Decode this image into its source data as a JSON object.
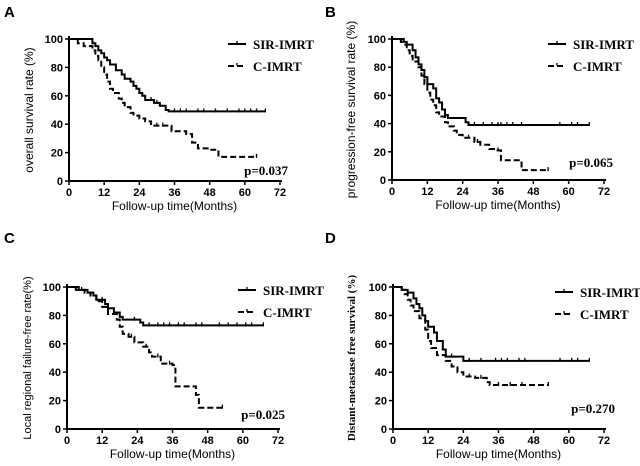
{
  "chart_data": [
    {
      "panel": "A",
      "type": "line",
      "step": true,
      "xlabel": "Follow-up time(Months)",
      "ylabel": "overall survival rate (%)",
      "xlim": [
        0,
        72
      ],
      "ylim": [
        0,
        100
      ],
      "xticks": [
        0,
        12,
        24,
        36,
        48,
        60,
        72
      ],
      "yticks": [
        0,
        20,
        40,
        60,
        80,
        100
      ],
      "p_value": "p=0.037",
      "grid": false,
      "legend_placement": "top-right",
      "series": [
        {
          "name": "SIR-IMRT",
          "style": "solid",
          "points": [
            [
              0,
              100
            ],
            [
              7,
              100
            ],
            [
              8,
              97
            ],
            [
              9,
              95
            ],
            [
              10,
              92
            ],
            [
              11,
              90
            ],
            [
              12,
              87
            ],
            [
              13,
              85
            ],
            [
              14,
              82
            ],
            [
              16,
              78
            ],
            [
              18,
              75
            ],
            [
              19,
              72
            ],
            [
              21,
              70
            ],
            [
              22,
              67
            ],
            [
              23,
              65
            ],
            [
              24,
              62
            ],
            [
              25,
              60
            ],
            [
              26,
              57
            ],
            [
              29,
              55
            ],
            [
              31,
              53
            ],
            [
              33,
              50
            ],
            [
              34,
              49
            ],
            [
              67,
              49
            ]
          ],
          "censored": [
            28,
            30,
            36,
            38,
            40,
            44,
            46,
            50,
            54,
            58,
            60,
            62,
            64,
            67
          ]
        },
        {
          "name": "C-IMRT",
          "style": "dashed",
          "points": [
            [
              0,
              100
            ],
            [
              3,
              97
            ],
            [
              5,
              95
            ],
            [
              8,
              92
            ],
            [
              9,
              88
            ],
            [
              10,
              85
            ],
            [
              11,
              80
            ],
            [
              12,
              75
            ],
            [
              13,
              70
            ],
            [
              14,
              65
            ],
            [
              15,
              62
            ],
            [
              17,
              58
            ],
            [
              18,
              55
            ],
            [
              19,
              52
            ],
            [
              21,
              48
            ],
            [
              22,
              46
            ],
            [
              24,
              44
            ],
            [
              26,
              42
            ],
            [
              28,
              39
            ],
            [
              33,
              39
            ],
            [
              35,
              35
            ],
            [
              40,
              33
            ],
            [
              42,
              27
            ],
            [
              44,
              23
            ],
            [
              48,
              22
            ],
            [
              51,
              17
            ],
            [
              64,
              17
            ]
          ],
          "censored": [
            30,
            32,
            64
          ]
        }
      ]
    },
    {
      "panel": "B",
      "type": "line",
      "step": true,
      "xlabel": "Follow-up time(Months)",
      "ylabel": "progression-free survival rate (%)",
      "xlim": [
        0,
        72
      ],
      "ylim": [
        0,
        100
      ],
      "xticks": [
        0,
        12,
        24,
        36,
        48,
        60,
        72
      ],
      "yticks": [
        0,
        20,
        40,
        60,
        80,
        100
      ],
      "p_value": "p=0.065",
      "grid": false,
      "legend_placement": "top-right",
      "series": [
        {
          "name": "SIR-IMRT",
          "style": "solid",
          "points": [
            [
              0,
              100
            ],
            [
              3,
              98
            ],
            [
              5,
              96
            ],
            [
              7,
              92
            ],
            [
              8,
              87
            ],
            [
              9,
              82
            ],
            [
              10,
              78
            ],
            [
              11,
              73
            ],
            [
              12,
              68
            ],
            [
              14,
              65
            ],
            [
              15,
              58
            ],
            [
              16,
              55
            ],
            [
              17,
              50
            ],
            [
              18,
              46
            ],
            [
              19,
              44
            ],
            [
              25,
              41
            ],
            [
              26,
              39
            ],
            [
              67,
              39
            ]
          ],
          "censored": [
            28,
            31,
            34,
            36,
            37,
            39,
            41,
            44,
            57,
            61,
            63,
            67
          ]
        },
        {
          "name": "C-IMRT",
          "style": "dashed",
          "points": [
            [
              0,
              100
            ],
            [
              4,
              96
            ],
            [
              5,
              92
            ],
            [
              6,
              88
            ],
            [
              7,
              84
            ],
            [
              9,
              80
            ],
            [
              10,
              74
            ],
            [
              11,
              68
            ],
            [
              12,
              62
            ],
            [
              13,
              57
            ],
            [
              14,
              53
            ],
            [
              15,
              48
            ],
            [
              16,
              45
            ],
            [
              18,
              41
            ],
            [
              19,
              38
            ],
            [
              21,
              35
            ],
            [
              22,
              32
            ],
            [
              24,
              30
            ],
            [
              28,
              27
            ],
            [
              30,
              25
            ],
            [
              33,
              22
            ],
            [
              35,
              21
            ],
            [
              37,
              14
            ],
            [
              44,
              7
            ],
            [
              53,
              7
            ]
          ],
          "censored": [
            26,
            29,
            36,
            53
          ]
        }
      ]
    },
    {
      "panel": "C",
      "type": "line",
      "step": true,
      "xlabel": "Follow-up time(Months)",
      "ylabel": "Local regional failure-free rate(%)",
      "xlim": [
        0,
        72
      ],
      "ylim": [
        0,
        100
      ],
      "xticks": [
        0,
        12,
        24,
        36,
        48,
        60,
        72
      ],
      "yticks": [
        0,
        20,
        40,
        60,
        80,
        100
      ],
      "p_value": "p=0.025",
      "grid": false,
      "legend_placement": "top-right",
      "series": [
        {
          "name": "SIR-IMRT",
          "style": "solid",
          "points": [
            [
              0,
              100
            ],
            [
              4,
              98
            ],
            [
              7,
              96
            ],
            [
              9,
              94
            ],
            [
              10,
              91
            ],
            [
              13,
              88
            ],
            [
              14,
              85
            ],
            [
              16,
              82
            ],
            [
              18,
              79
            ],
            [
              19,
              77
            ],
            [
              25,
              75
            ],
            [
              26,
              73
            ],
            [
              67,
              73
            ]
          ],
          "censored": [
            5,
            12,
            23,
            28,
            31,
            33,
            35,
            38,
            40,
            44,
            46,
            52,
            55,
            58,
            61,
            63,
            67
          ]
        },
        {
          "name": "C-IMRT",
          "style": "dashed",
          "points": [
            [
              0,
              100
            ],
            [
              3,
              98
            ],
            [
              6,
              96
            ],
            [
              8,
              94
            ],
            [
              10,
              90
            ],
            [
              12,
              86
            ],
            [
              14,
              81
            ],
            [
              17,
              77
            ],
            [
              18,
              72
            ],
            [
              19,
              67
            ],
            [
              21,
              65
            ],
            [
              23,
              61
            ],
            [
              26,
              58
            ],
            [
              28,
              54
            ],
            [
              29,
              51
            ],
            [
              32,
              46
            ],
            [
              36,
              45
            ],
            [
              37,
              30
            ],
            [
              44,
              24
            ],
            [
              45,
              15
            ],
            [
              53,
              15
            ]
          ],
          "censored": [
            22,
            27,
            31,
            35,
            53
          ]
        }
      ]
    },
    {
      "panel": "D",
      "type": "line",
      "step": true,
      "xlabel": "Follow-up time(Months)",
      "ylabel": "Distant-metastase free survival (%)",
      "xlim": [
        0,
        72
      ],
      "ylim": [
        0,
        100
      ],
      "xticks": [
        0,
        12,
        24,
        36,
        48,
        60,
        72
      ],
      "yticks": [
        0,
        20,
        40,
        60,
        80,
        100
      ],
      "p_value": "p=0.270",
      "grid": false,
      "legend_placement": "top-right",
      "series": [
        {
          "name": "SIR-IMRT",
          "style": "solid",
          "points": [
            [
              0,
              100
            ],
            [
              3,
              98
            ],
            [
              5,
              96
            ],
            [
              7,
              92
            ],
            [
              8,
              88
            ],
            [
              9,
              85
            ],
            [
              10,
              80
            ],
            [
              11,
              76
            ],
            [
              12,
              72
            ],
            [
              14,
              68
            ],
            [
              15,
              62
            ],
            [
              17,
              56
            ],
            [
              18,
              51
            ],
            [
              24,
              48
            ],
            [
              67,
              48
            ]
          ],
          "censored": [
            20,
            26,
            30,
            35,
            37,
            39,
            43,
            45,
            57,
            61,
            63,
            67
          ]
        },
        {
          "name": "C-IMRT",
          "style": "dashed",
          "points": [
            [
              0,
              100
            ],
            [
              3,
              98
            ],
            [
              4,
              95
            ],
            [
              5,
              91
            ],
            [
              6,
              87
            ],
            [
              7,
              83
            ],
            [
              9,
              78
            ],
            [
              11,
              70
            ],
            [
              12,
              62
            ],
            [
              13,
              57
            ],
            [
              15,
              52
            ],
            [
              18,
              48
            ],
            [
              20,
              44
            ],
            [
              22,
              40
            ],
            [
              24,
              37
            ],
            [
              28,
              36
            ],
            [
              32,
              33
            ],
            [
              33,
              31
            ],
            [
              53,
              31
            ]
          ],
          "censored": [
            26,
            30,
            36,
            40,
            44,
            53
          ]
        }
      ]
    }
  ],
  "colors": {
    "line": "#000000",
    "background": "#ffffff"
  }
}
